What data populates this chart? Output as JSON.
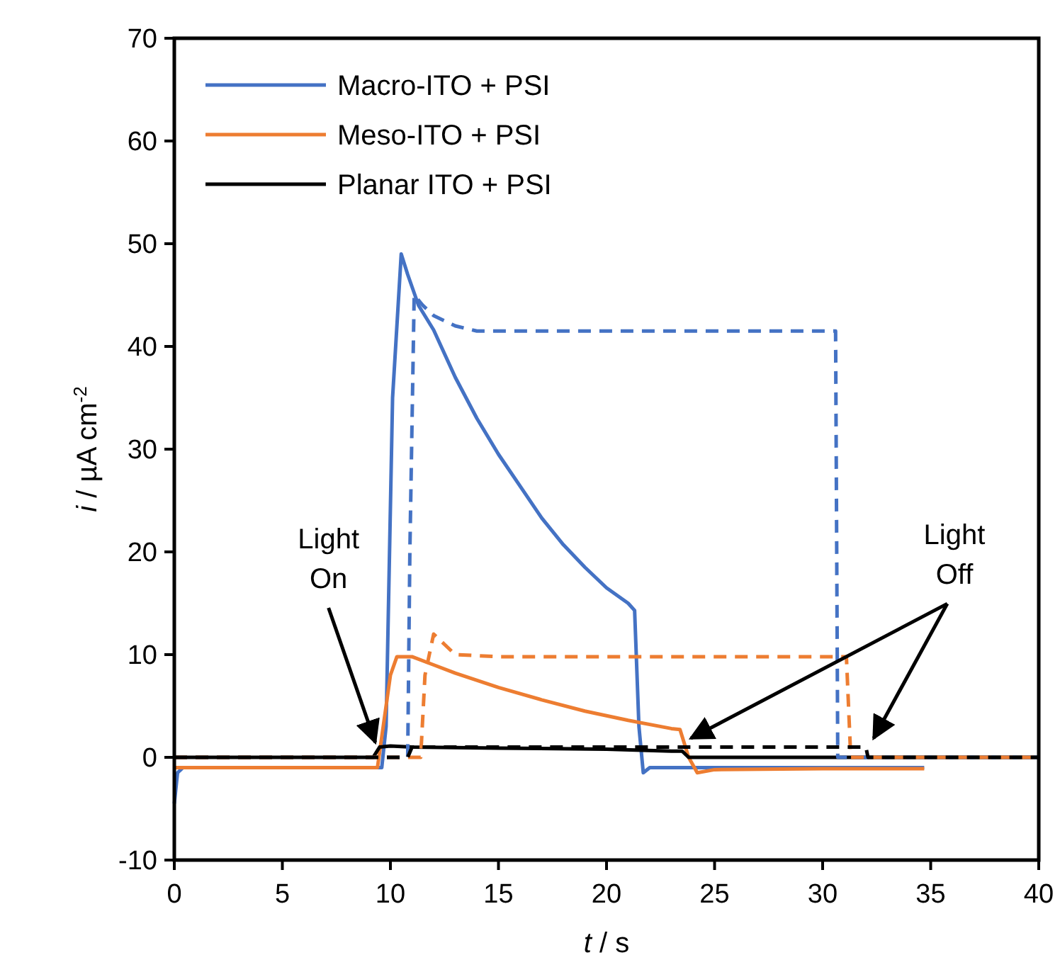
{
  "chart_data": {
    "type": "line",
    "xlabel": "t / s",
    "ylabel": "i / µA cm$^{-2}$",
    "xlim": [
      0,
      40
    ],
    "ylim": [
      -10,
      70
    ],
    "xticks": [
      0,
      5,
      10,
      15,
      20,
      25,
      30,
      35,
      40
    ],
    "yticks": [
      -10,
      0,
      10,
      20,
      30,
      40,
      50,
      60,
      70
    ],
    "grid": false,
    "legend": "top left",
    "annotations": [
      {
        "text": "Light On",
        "x": 9.3,
        "y": 0.9
      },
      {
        "text": "Light Off",
        "x": 23.9,
        "y": 1.3
      }
    ],
    "series": [
      {
        "name": "Macro-ITO + PSI",
        "color": "#4472c4",
        "line_style": "solid",
        "x": [
          0,
          0.15,
          0.4,
          1,
          5,
          9,
          9.6,
          9.8,
          10.1,
          10.5,
          10.8,
          11.3,
          12,
          13,
          14,
          15,
          16,
          17,
          18,
          19,
          20,
          21,
          21.3,
          21.5,
          21.7,
          22,
          25,
          30,
          34.7
        ],
        "values": [
          -4.5,
          -1.5,
          -1,
          -1,
          -1,
          -1,
          -1,
          3,
          35,
          49,
          47,
          44,
          41.6,
          37,
          33,
          29.5,
          26.4,
          23.3,
          20.7,
          18.5,
          16.5,
          15,
          14.3,
          3,
          -1.5,
          -1,
          -1,
          -1,
          -1
        ]
      },
      {
        "name": "Meso-ITO + PSI",
        "color": "#ed7d31",
        "line_style": "solid",
        "x": [
          0,
          1,
          5,
          9,
          9.4,
          9.6,
          10,
          10.3,
          11,
          12,
          13,
          15,
          17,
          19,
          21,
          23,
          23.4,
          23.8,
          24.2,
          25,
          30,
          34.7
        ],
        "values": [
          -1,
          -1,
          -1,
          -1,
          -1,
          2,
          8,
          9.8,
          9.8,
          9,
          8.2,
          6.8,
          5.6,
          4.5,
          3.6,
          2.8,
          2.7,
          0,
          -1.5,
          -1.2,
          -1.1,
          -1.1
        ]
      },
      {
        "name": "Planar ITO + PSI",
        "color": "#000000",
        "line_style": "solid",
        "x": [
          0,
          5,
          9.2,
          9.5,
          10,
          11,
          15,
          20,
          23,
          23.5,
          23.8,
          30,
          40
        ],
        "values": [
          0,
          0,
          0,
          1,
          1.1,
          1,
          0.9,
          0.8,
          0.6,
          0.6,
          0,
          0,
          0
        ]
      },
      {
        "color": "#4472c4",
        "line_style": "dashed",
        "x": [
          0,
          5,
          10.8,
          10.9,
          11.1,
          11.5,
          12,
          13,
          14,
          16,
          18,
          20,
          22,
          24,
          26,
          28,
          30,
          30.6,
          30.7,
          35,
          40
        ],
        "values": [
          0,
          0,
          0,
          20,
          45,
          44,
          43,
          42,
          41.5,
          41.5,
          41.5,
          41.5,
          41.5,
          41.5,
          41.5,
          41.5,
          41.5,
          41.5,
          0,
          0,
          0
        ]
      },
      {
        "color": "#ed7d31",
        "line_style": "dashed",
        "x": [
          0,
          5,
          11.4,
          11.6,
          12,
          12.5,
          13,
          15,
          18,
          21,
          24,
          27,
          30,
          31.1,
          31.3,
          35,
          40
        ],
        "values": [
          0,
          0,
          0,
          8,
          12,
          11,
          10,
          9.8,
          9.8,
          9.8,
          9.8,
          9.8,
          9.8,
          9.8,
          0,
          0,
          0
        ]
      },
      {
        "color": "#000000",
        "line_style": "dashed",
        "x": [
          0,
          5,
          10.8,
          11,
          15,
          20,
          25,
          30,
          32,
          32.1,
          36,
          40
        ],
        "values": [
          0,
          0,
          0,
          1,
          1,
          1,
          1,
          1,
          1,
          0,
          0,
          0
        ]
      }
    ]
  }
}
